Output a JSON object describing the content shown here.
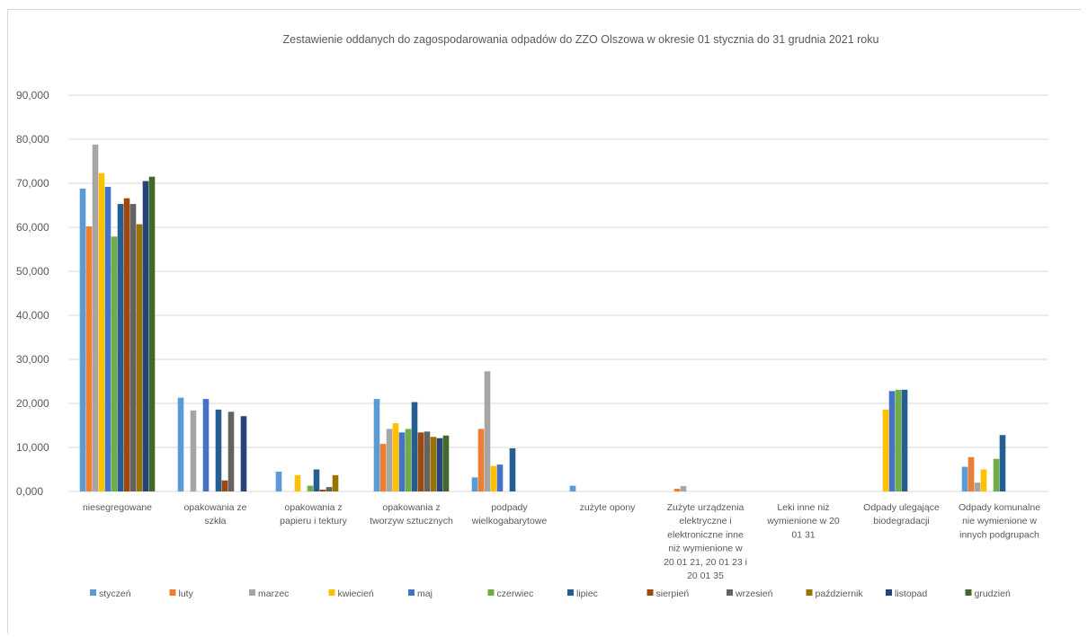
{
  "chart_data": {
    "type": "bar",
    "title": "Zestawienie oddanych do zagospodarowania odpadów do ZZO Olszowa  w okresie 01 stycznia do 31 grudnia 2021 roku",
    "xlabel": "",
    "ylabel": "",
    "ylim": [
      0,
      90
    ],
    "yticks": [
      0,
      10,
      20,
      30,
      40,
      50,
      60,
      70,
      80,
      90
    ],
    "ytick_labels": [
      "0,000",
      "10,000",
      "20,000",
      "30,000",
      "40,000",
      "50,000",
      "60,000",
      "70,000",
      "80,000",
      "90,000"
    ],
    "grid": true,
    "legend_position": "bottom",
    "categories": [
      [
        "niesegregowane"
      ],
      [
        "opakowania ze",
        "szkła"
      ],
      [
        "opakowania z",
        "papieru i tektury"
      ],
      [
        "opakowania z",
        "tworzyw sztucznych"
      ],
      [
        "podpady",
        "wielkogabarytowe"
      ],
      [
        "zużyte opony"
      ],
      [
        "Zużyte urządzenia",
        "elektryczne i",
        "elektroniczne inne",
        "niż wymienione w",
        "20 01 21, 20 01 23 i",
        "20 01 35"
      ],
      [
        "Leki inne niż",
        "wymienione w 20",
        "01 31"
      ],
      [
        "Odpady ulegające",
        "biodegradacji"
      ],
      [
        "Odpady komunalne",
        "nie wymienione w",
        "innych podgrupach"
      ]
    ],
    "series": [
      {
        "name": "styczeń",
        "color": "#5b9bd5",
        "values": [
          68.8,
          21.3,
          4.5,
          21.0,
          3.2,
          1.3,
          0,
          0,
          0,
          5.6
        ]
      },
      {
        "name": "luty",
        "color": "#ed7d31",
        "values": [
          60.2,
          0,
          0,
          10.8,
          14.2,
          0,
          0.6,
          0,
          0,
          7.8
        ]
      },
      {
        "name": "marzec",
        "color": "#a5a5a5",
        "values": [
          78.8,
          18.4,
          0,
          14.2,
          27.3,
          0,
          1.2,
          0,
          0,
          2.0
        ]
      },
      {
        "name": "kwiecień",
        "color": "#ffc000",
        "values": [
          72.3,
          0,
          3.7,
          15.5,
          5.8,
          0,
          0,
          0,
          18.6,
          5.0
        ]
      },
      {
        "name": "maj",
        "color": "#4472c4",
        "values": [
          69.2,
          21.0,
          0,
          13.4,
          6.1,
          0,
          0,
          0,
          22.8,
          0
        ]
      },
      {
        "name": "czerwiec",
        "color": "#70ad47",
        "values": [
          57.9,
          0,
          1.3,
          14.2,
          0,
          0,
          0,
          0,
          23.1,
          7.4
        ]
      },
      {
        "name": "lipiec",
        "color": "#255e91",
        "values": [
          65.3,
          18.6,
          5.0,
          20.3,
          9.8,
          0,
          0,
          0,
          23.1,
          12.8
        ]
      },
      {
        "name": "sierpień",
        "color": "#9e480e",
        "values": [
          66.6,
          2.5,
          0.4,
          13.4,
          0,
          0,
          0,
          0,
          0,
          0
        ]
      },
      {
        "name": "wrzesień",
        "color": "#636363",
        "values": [
          65.3,
          18.1,
          1.0,
          13.6,
          0,
          0,
          0,
          0,
          0,
          0
        ]
      },
      {
        "name": "październik",
        "color": "#997300",
        "values": [
          60.7,
          0,
          3.7,
          12.4,
          0,
          0,
          0,
          0,
          0,
          0
        ]
      },
      {
        "name": "listopad",
        "color": "#264478",
        "values": [
          70.5,
          17.1,
          0,
          12.1,
          0,
          0,
          0,
          0,
          0,
          0
        ]
      },
      {
        "name": "grudzień",
        "color": "#43682b",
        "values": [
          71.5,
          0,
          0,
          12.7,
          0,
          0,
          0,
          0,
          0,
          0
        ]
      }
    ]
  }
}
